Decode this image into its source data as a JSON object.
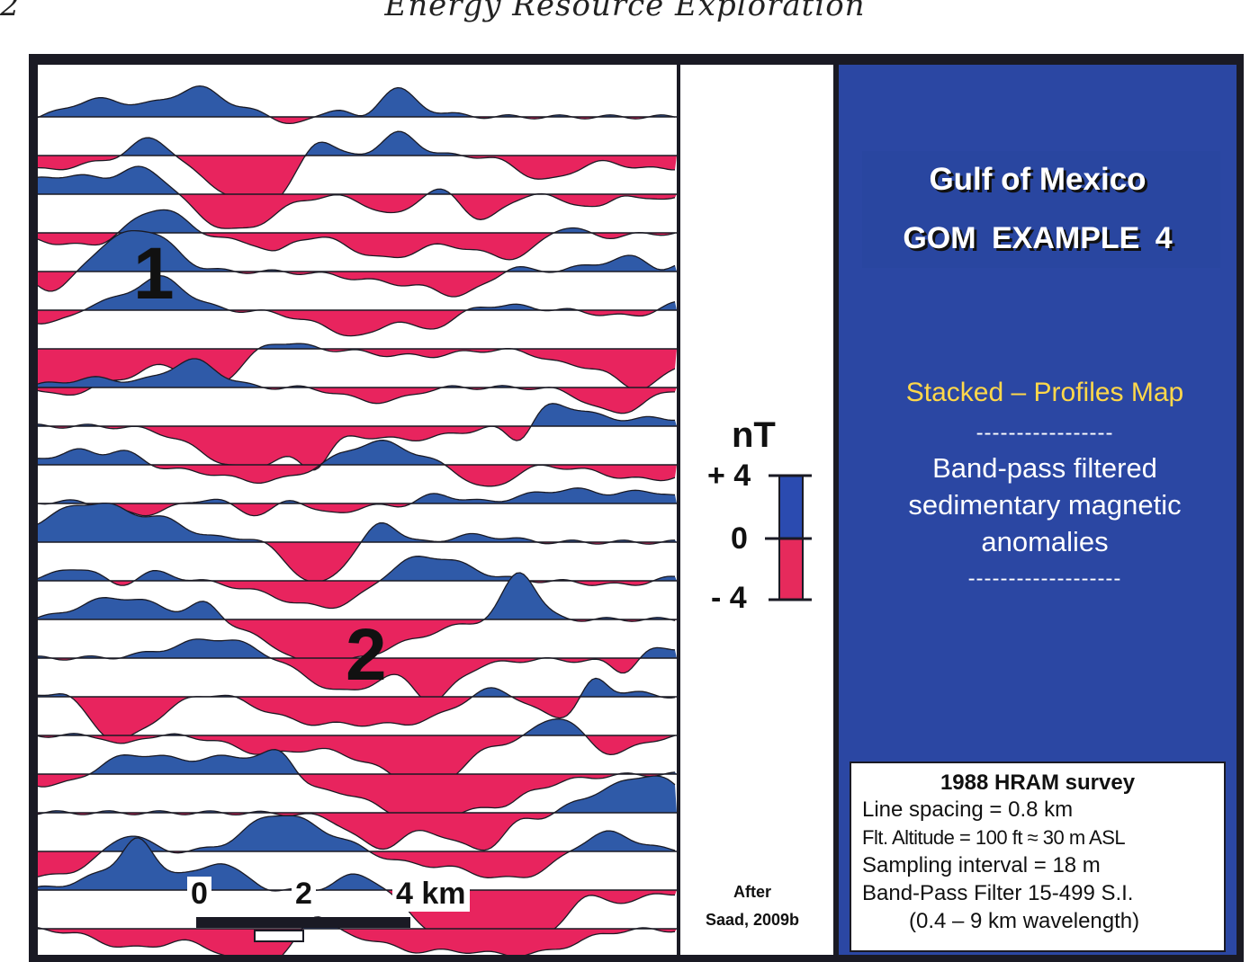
{
  "page_header": {
    "page_number": "2",
    "running_title": "Energy Resource Exploration"
  },
  "figure": {
    "map": {
      "label_1": "1",
      "label_2": "2",
      "scale_bar": {
        "tick_0": "0",
        "tick_2": "2",
        "tick_4": "4 km"
      },
      "colors": {
        "positive": "#2f5aa8",
        "negative": "#e8245e"
      }
    },
    "legend": {
      "unit": "nT",
      "top": "+ 4",
      "mid": "0",
      "bottom": "- 4",
      "colors": {
        "positive": "#2b4bb0",
        "negative": "#e62a5c"
      }
    },
    "credit": {
      "line1": "After",
      "line2": "Saad, 2009b"
    },
    "info_panel": {
      "title": "Gulf of Mexico",
      "example": "GOM  EXAMPLE  4",
      "subtitle": "Stacked – Profiles Map",
      "dash_top": "-----------------",
      "desc_line1": "Band-pass filtered",
      "desc_line2": "sedimentary  magnetic",
      "desc_line3": "anomalies",
      "dash_bottom": "-------------------",
      "background_color": "#2b47a3",
      "subtitle_color": "#ffd84a"
    },
    "survey": {
      "title": "1988 HRAM survey",
      "line_spacing": "Line spacing = 0.8 km",
      "altitude": "Flt. Altitude = 100 ft ≈ 30 m ASL",
      "sampling": "Sampling interval = 18 m",
      "filter": "Band-Pass Filter 15-499  S.I.",
      "wavelength": "(0.4 – 9 km wavelength)"
    }
  }
}
